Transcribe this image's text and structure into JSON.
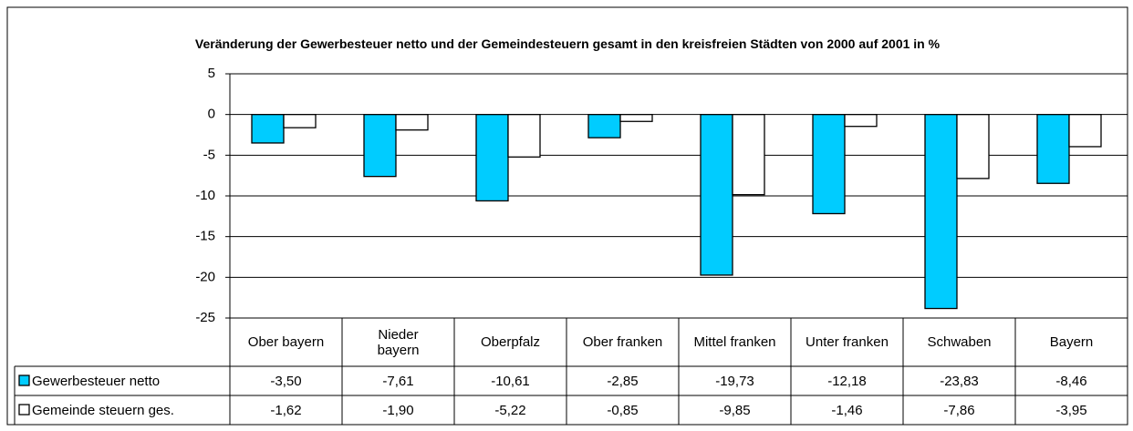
{
  "chart_data": {
    "type": "bar",
    "title": "Veränderung der Gewerbesteuer netto und der Gemeindesteuern gesamt in den kreisfreien Städten von 2000 auf 2001 in %",
    "categories": [
      "Ober bayern",
      "Nieder\nbayern",
      "Oberpfalz",
      "Ober franken",
      "Mittel franken",
      "Unter franken",
      "Schwaben",
      "Bayern"
    ],
    "series": [
      {
        "name": "Gewerbesteuer netto",
        "color": "#00ccff",
        "values": [
          -3.5,
          -7.61,
          -10.61,
          -2.85,
          -19.73,
          -12.18,
          -23.83,
          -8.46
        ],
        "value_labels": [
          "-3,50",
          "-7,61",
          "-10,61",
          "-2,85",
          "-19,73",
          "-12,18",
          "-23,83",
          "-8,46"
        ]
      },
      {
        "name": "Gemeinde steuern ges.",
        "color": "#ffffff",
        "values": [
          -1.62,
          -1.9,
          -5.22,
          -0.85,
          -9.85,
          -1.46,
          -7.86,
          -3.95
        ],
        "value_labels": [
          "-1,62",
          "-1,90",
          "-5,22",
          "-0,85",
          "-9,85",
          "-1,46",
          "-7,86",
          "-3,95"
        ]
      }
    ],
    "ylim": [
      -25,
      5
    ],
    "yticks": [
      -25,
      -20,
      -15,
      -10,
      -5,
      0,
      5
    ],
    "grid": true,
    "data_table": true
  }
}
